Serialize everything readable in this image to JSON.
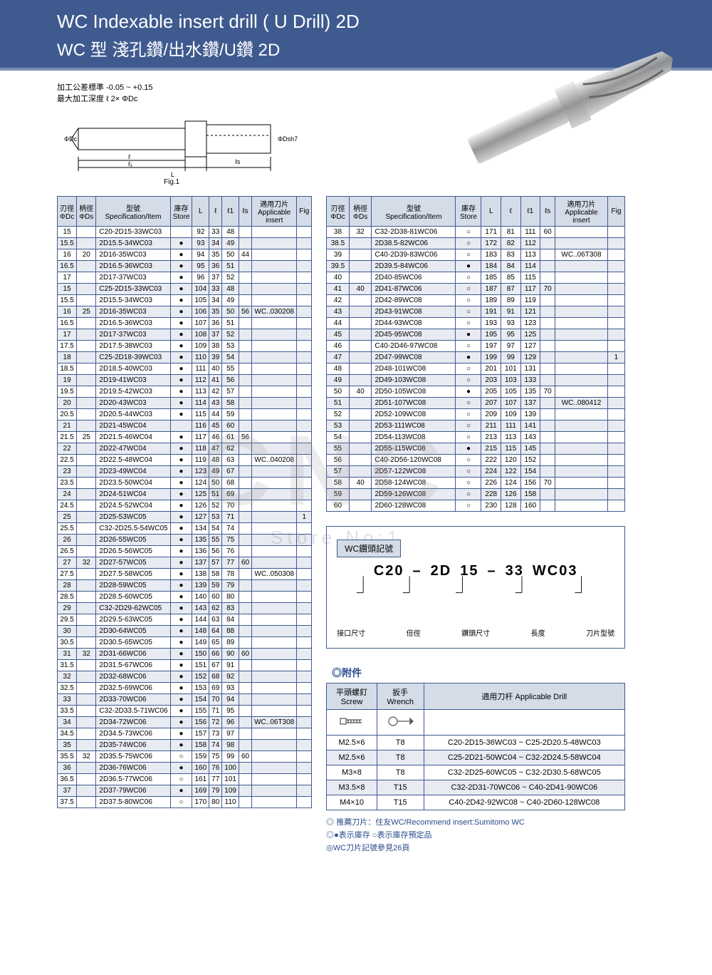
{
  "header": {
    "title_en": "WC Indexable insert drill   ( U Drill)   2D",
    "title_zh": "WC 型 淺孔鑽/出水鑽/U鑽  2D"
  },
  "tolerance": {
    "line1": "加工公差標準  -0.05 ~ +0.15",
    "line2": "最大加工深度 ℓ 2× ΦDc"
  },
  "fig_label": "Fig.1",
  "table_headers": {
    "dc": "刃徑\nΦDc",
    "ds": "柄徑\nΦDs",
    "spec": "型號\nSpecification/Item",
    "store": "庫存\nStore",
    "L": "L",
    "l": "ℓ",
    "l1": "ℓ1",
    "ls": "ℓs",
    "insert": "適用刀片\nApplicable\ninsert",
    "fig": "Fig"
  },
  "table1": {
    "rows": [
      {
        "dc": "15",
        "ds": "",
        "spec": "C20-2D15-33WC03",
        "store": "",
        "L": "92",
        "l": "33",
        "l1": "48",
        "ls": "",
        "ins": "",
        "fig": ""
      },
      {
        "dc": "15.5",
        "ds": "",
        "spec": "2D15.5-34WC03",
        "store": "●",
        "L": "93",
        "l": "34",
        "l1": "49",
        "ls": "",
        "ins": "",
        "fig": ""
      },
      {
        "dc": "16",
        "ds": "20",
        "spec": "2D16-35WC03",
        "store": "●",
        "L": "94",
        "l": "35",
        "l1": "50",
        "ls": "44",
        "ins": "",
        "fig": ""
      },
      {
        "dc": "16.5",
        "ds": "",
        "spec": "2D16.5-36WC03",
        "store": "●",
        "L": "95",
        "l": "36",
        "l1": "51",
        "ls": "",
        "ins": "",
        "fig": ""
      },
      {
        "dc": "17",
        "ds": "",
        "spec": "2D17-37WC03",
        "store": "●",
        "L": "96",
        "l": "37",
        "l1": "52",
        "ls": "",
        "ins": "",
        "fig": ""
      },
      {
        "dc": "15",
        "ds": "",
        "spec": "C25-2D15-33WC03",
        "store": "●",
        "L": "104",
        "l": "33",
        "l1": "48",
        "ls": "",
        "ins": "",
        "fig": ""
      },
      {
        "dc": "15.5",
        "ds": "",
        "spec": "2D15.5-34WC03",
        "store": "●",
        "L": "105",
        "l": "34",
        "l1": "49",
        "ls": "",
        "ins": "",
        "fig": ""
      },
      {
        "dc": "16",
        "ds": "25",
        "spec": "2D16-35WC03",
        "store": "●",
        "L": "106",
        "l": "35",
        "l1": "50",
        "ls": "56",
        "ins": "WC..030208",
        "fig": ""
      },
      {
        "dc": "16.5",
        "ds": "",
        "spec": "2D16.5-36WC03",
        "store": "●",
        "L": "107",
        "l": "36",
        "l1": "51",
        "ls": "",
        "ins": "",
        "fig": ""
      },
      {
        "dc": "17",
        "ds": "",
        "spec": "2D17-37WC03",
        "store": "●",
        "L": "108",
        "l": "37",
        "l1": "52",
        "ls": "",
        "ins": "",
        "fig": ""
      },
      {
        "dc": "17.5",
        "ds": "",
        "spec": "2D17.5-38WC03",
        "store": "●",
        "L": "109",
        "l": "38",
        "l1": "53",
        "ls": "",
        "ins": "",
        "fig": ""
      },
      {
        "dc": "18",
        "ds": "",
        "spec": "C25-2D18-39WC03",
        "store": "●",
        "L": "110",
        "l": "39",
        "l1": "54",
        "ls": "",
        "ins": "",
        "fig": ""
      },
      {
        "dc": "18.5",
        "ds": "",
        "spec": "2D18.5-40WC03",
        "store": "●",
        "L": "111",
        "l": "40",
        "l1": "55",
        "ls": "",
        "ins": "",
        "fig": ""
      },
      {
        "dc": "19",
        "ds": "",
        "spec": "2D19-41WC03",
        "store": "●",
        "L": "112",
        "l": "41",
        "l1": "56",
        "ls": "",
        "ins": "",
        "fig": ""
      },
      {
        "dc": "19.5",
        "ds": "",
        "spec": "2D19.5-42WC03",
        "store": "●",
        "L": "113",
        "l": "42",
        "l1": "57",
        "ls": "",
        "ins": "",
        "fig": ""
      },
      {
        "dc": "20",
        "ds": "",
        "spec": "2D20-43WC03",
        "store": "●",
        "L": "114",
        "l": "43",
        "l1": "58",
        "ls": "",
        "ins": "",
        "fig": ""
      },
      {
        "dc": "20.5",
        "ds": "",
        "spec": "2D20.5-44WC03",
        "store": "●",
        "L": "115",
        "l": "44",
        "l1": "59",
        "ls": "",
        "ins": "",
        "fig": ""
      },
      {
        "dc": "21",
        "ds": "",
        "spec": "2D21-45WC04",
        "store": "",
        "L": "116",
        "l": "45",
        "l1": "60",
        "ls": "",
        "ins": "",
        "fig": ""
      },
      {
        "dc": "21.5",
        "ds": "25",
        "spec": "2D21.5-46WC04",
        "store": "●",
        "L": "117",
        "l": "46",
        "l1": "61",
        "ls": "56",
        "ins": "",
        "fig": ""
      },
      {
        "dc": "22",
        "ds": "",
        "spec": "2D22-47WC04",
        "store": "●",
        "L": "118",
        "l": "47",
        "l1": "62",
        "ls": "",
        "ins": "",
        "fig": ""
      },
      {
        "dc": "22.5",
        "ds": "",
        "spec": "2D22.5-48WC04",
        "store": "●",
        "L": "119",
        "l": "48",
        "l1": "63",
        "ls": "",
        "ins": "WC..040208",
        "fig": ""
      },
      {
        "dc": "23",
        "ds": "",
        "spec": "2D23-49WC04",
        "store": "●",
        "L": "123",
        "l": "49",
        "l1": "67",
        "ls": "",
        "ins": "",
        "fig": ""
      },
      {
        "dc": "23.5",
        "ds": "",
        "spec": "2D23.5-50WC04",
        "store": "●",
        "L": "124",
        "l": "50",
        "l1": "68",
        "ls": "",
        "ins": "",
        "fig": ""
      },
      {
        "dc": "24",
        "ds": "",
        "spec": "2D24-51WC04",
        "store": "●",
        "L": "125",
        "l": "51",
        "l1": "69",
        "ls": "",
        "ins": "",
        "fig": ""
      },
      {
        "dc": "24.5",
        "ds": "",
        "spec": "2D24.5-52WC04",
        "store": "●",
        "L": "126",
        "l": "52",
        "l1": "70",
        "ls": "",
        "ins": "",
        "fig": ""
      },
      {
        "dc": "25",
        "ds": "",
        "spec": "2D25-53WC05",
        "store": "●",
        "L": "127",
        "l": "53",
        "l1": "71",
        "ls": "",
        "ins": "",
        "fig": "1"
      },
      {
        "dc": "25.5",
        "ds": "",
        "spec": "C32-2D25.5-54WC05",
        "store": "●",
        "L": "134",
        "l": "54",
        "l1": "74",
        "ls": "",
        "ins": "",
        "fig": ""
      },
      {
        "dc": "26",
        "ds": "",
        "spec": "2D26-55WC05",
        "store": "●",
        "L": "135",
        "l": "55",
        "l1": "75",
        "ls": "",
        "ins": "",
        "fig": ""
      },
      {
        "dc": "26.5",
        "ds": "",
        "spec": "2D26.5-56WC05",
        "store": "●",
        "L": "136",
        "l": "56",
        "l1": "76",
        "ls": "",
        "ins": "",
        "fig": ""
      },
      {
        "dc": "27",
        "ds": "32",
        "spec": "2D27-57WC05",
        "store": "●",
        "L": "137",
        "l": "57",
        "l1": "77",
        "ls": "60",
        "ins": "",
        "fig": ""
      },
      {
        "dc": "27.5",
        "ds": "",
        "spec": "2D27.5-58WC05",
        "store": "●",
        "L": "138",
        "l": "58",
        "l1": "78",
        "ls": "",
        "ins": "WC..050308",
        "fig": ""
      },
      {
        "dc": "28",
        "ds": "",
        "spec": "2D28-59WC05",
        "store": "●",
        "L": "139",
        "l": "59",
        "l1": "79",
        "ls": "",
        "ins": "",
        "fig": ""
      },
      {
        "dc": "28.5",
        "ds": "",
        "spec": "2D28.5-60WC05",
        "store": "●",
        "L": "140",
        "l": "60",
        "l1": "80",
        "ls": "",
        "ins": "",
        "fig": ""
      },
      {
        "dc": "29",
        "ds": "",
        "spec": "C32-2D29-62WC05",
        "store": "●",
        "L": "143",
        "l": "62",
        "l1": "83",
        "ls": "",
        "ins": "",
        "fig": ""
      },
      {
        "dc": "29.5",
        "ds": "",
        "spec": "2D29.5-63WC05",
        "store": "●",
        "L": "144",
        "l": "63",
        "l1": "84",
        "ls": "",
        "ins": "",
        "fig": ""
      },
      {
        "dc": "30",
        "ds": "",
        "spec": "2D30-64WC05",
        "store": "●",
        "L": "148",
        "l": "64",
        "l1": "88",
        "ls": "",
        "ins": "",
        "fig": ""
      },
      {
        "dc": "30.5",
        "ds": "",
        "spec": "2D30.5-65WC05",
        "store": "●",
        "L": "149",
        "l": "65",
        "l1": "89",
        "ls": "",
        "ins": "",
        "fig": ""
      },
      {
        "dc": "31",
        "ds": "32",
        "spec": "2D31-66WC06",
        "store": "●",
        "L": "150",
        "l": "66",
        "l1": "90",
        "ls": "60",
        "ins": "",
        "fig": ""
      },
      {
        "dc": "31.5",
        "ds": "",
        "spec": "2D31.5-67WC06",
        "store": "●",
        "L": "151",
        "l": "67",
        "l1": "91",
        "ls": "",
        "ins": "",
        "fig": ""
      },
      {
        "dc": "32",
        "ds": "",
        "spec": "2D32-68WC06",
        "store": "●",
        "L": "152",
        "l": "68",
        "l1": "92",
        "ls": "",
        "ins": "",
        "fig": ""
      },
      {
        "dc": "32.5",
        "ds": "",
        "spec": "2D32.5-69WC06",
        "store": "●",
        "L": "153",
        "l": "69",
        "l1": "93",
        "ls": "",
        "ins": "",
        "fig": ""
      },
      {
        "dc": "33",
        "ds": "",
        "spec": "2D33-70WC06",
        "store": "●",
        "L": "154",
        "l": "70",
        "l1": "94",
        "ls": "",
        "ins": "",
        "fig": ""
      },
      {
        "dc": "33.5",
        "ds": "",
        "spec": "C32-2D33.5-71WC06",
        "store": "●",
        "L": "155",
        "l": "71",
        "l1": "95",
        "ls": "",
        "ins": "",
        "fig": ""
      },
      {
        "dc": "34",
        "ds": "",
        "spec": "2D34-72WC06",
        "store": "●",
        "L": "156",
        "l": "72",
        "l1": "96",
        "ls": "",
        "ins": "WC..06T308",
        "fig": ""
      },
      {
        "dc": "34.5",
        "ds": "",
        "spec": "2D34.5-73WC06",
        "store": "●",
        "L": "157",
        "l": "73",
        "l1": "97",
        "ls": "",
        "ins": "",
        "fig": ""
      },
      {
        "dc": "35",
        "ds": "",
        "spec": "2D35-74WC06",
        "store": "●",
        "L": "158",
        "l": "74",
        "l1": "98",
        "ls": "",
        "ins": "",
        "fig": ""
      },
      {
        "dc": "35.5",
        "ds": "32",
        "spec": "2D35.5-75WC06",
        "store": "○",
        "L": "159",
        "l": "75",
        "l1": "99",
        "ls": "60",
        "ins": "",
        "fig": ""
      },
      {
        "dc": "36",
        "ds": "",
        "spec": "2D36-76WC06",
        "store": "●",
        "L": "160",
        "l": "76",
        "l1": "100",
        "ls": "",
        "ins": "",
        "fig": ""
      },
      {
        "dc": "36.5",
        "ds": "",
        "spec": "2D36.5-77WC06",
        "store": "○",
        "L": "161",
        "l": "77",
        "l1": "101",
        "ls": "",
        "ins": "",
        "fig": ""
      },
      {
        "dc": "37",
        "ds": "",
        "spec": "2D37-79WC06",
        "store": "●",
        "L": "169",
        "l": "79",
        "l1": "109",
        "ls": "",
        "ins": "",
        "fig": ""
      },
      {
        "dc": "37.5",
        "ds": "",
        "spec": "2D37.5-80WC06",
        "store": "○",
        "L": "170",
        "l": "80",
        "l1": "110",
        "ls": "",
        "ins": "",
        "fig": ""
      }
    ]
  },
  "table2": {
    "rows": [
      {
        "dc": "38",
        "ds": "32",
        "spec": "C32-2D38-81WC06",
        "store": "○",
        "L": "171",
        "l": "81",
        "l1": "111",
        "ls": "60",
        "ins": "",
        "fig": ""
      },
      {
        "dc": "38.5",
        "ds": "",
        "spec": "2D38.5-82WC06",
        "store": "○",
        "L": "172",
        "l": "82",
        "l1": "112",
        "ls": "",
        "ins": "",
        "fig": ""
      },
      {
        "dc": "39",
        "ds": "",
        "spec": "C40-2D39-83WC06",
        "store": "○",
        "L": "183",
        "l": "83",
        "l1": "113",
        "ls": "",
        "ins": "WC..06T308",
        "fig": ""
      },
      {
        "dc": "39.5",
        "ds": "",
        "spec": "2D39.5-84WC06",
        "store": "●",
        "L": "184",
        "l": "84",
        "l1": "114",
        "ls": "",
        "ins": "",
        "fig": ""
      },
      {
        "dc": "40",
        "ds": "",
        "spec": "2D40-85WC06",
        "store": "○",
        "L": "185",
        "l": "85",
        "l1": "115",
        "ls": "",
        "ins": "",
        "fig": ""
      },
      {
        "dc": "41",
        "ds": "40",
        "spec": "2D41-87WC06",
        "store": "○",
        "L": "187",
        "l": "87",
        "l1": "117",
        "ls": "70",
        "ins": "",
        "fig": ""
      },
      {
        "dc": "42",
        "ds": "",
        "spec": "2D42-89WC08",
        "store": "○",
        "L": "189",
        "l": "89",
        "l1": "119",
        "ls": "",
        "ins": "",
        "fig": ""
      },
      {
        "dc": "43",
        "ds": "",
        "spec": "2D43-91WC08",
        "store": "○",
        "L": "191",
        "l": "91",
        "l1": "121",
        "ls": "",
        "ins": "",
        "fig": ""
      },
      {
        "dc": "44",
        "ds": "",
        "spec": "2D44-93WC08",
        "store": "○",
        "L": "193",
        "l": "93",
        "l1": "123",
        "ls": "",
        "ins": "",
        "fig": ""
      },
      {
        "dc": "45",
        "ds": "",
        "spec": "2D45-95WC08",
        "store": "●",
        "L": "195",
        "l": "95",
        "l1": "125",
        "ls": "",
        "ins": "",
        "fig": ""
      },
      {
        "dc": "46",
        "ds": "",
        "spec": "C40-2D46-97WC08",
        "store": "○",
        "L": "197",
        "l": "97",
        "l1": "127",
        "ls": "",
        "ins": "",
        "fig": ""
      },
      {
        "dc": "47",
        "ds": "",
        "spec": "2D47-99WC08",
        "store": "●",
        "L": "199",
        "l": "99",
        "l1": "129",
        "ls": "",
        "ins": "",
        "fig": "1"
      },
      {
        "dc": "48",
        "ds": "",
        "spec": "2D48-101WC08",
        "store": "○",
        "L": "201",
        "l": "101",
        "l1": "131",
        "ls": "",
        "ins": "",
        "fig": ""
      },
      {
        "dc": "49",
        "ds": "",
        "spec": "2D49-103WC08",
        "store": "○",
        "L": "203",
        "l": "103",
        "l1": "133",
        "ls": "",
        "ins": "",
        "fig": ""
      },
      {
        "dc": "50",
        "ds": "40",
        "spec": "2D50-105WC08",
        "store": "●",
        "L": "205",
        "l": "105",
        "l1": "135",
        "ls": "70",
        "ins": "",
        "fig": ""
      },
      {
        "dc": "51",
        "ds": "",
        "spec": "2D51-107WC08",
        "store": "○",
        "L": "207",
        "l": "107",
        "l1": "137",
        "ls": "",
        "ins": "WC..080412",
        "fig": ""
      },
      {
        "dc": "52",
        "ds": "",
        "spec": "2D52-109WC08",
        "store": "○",
        "L": "209",
        "l": "109",
        "l1": "139",
        "ls": "",
        "ins": "",
        "fig": ""
      },
      {
        "dc": "53",
        "ds": "",
        "spec": "2D53-111WC08",
        "store": "○",
        "L": "211",
        "l": "111",
        "l1": "141",
        "ls": "",
        "ins": "",
        "fig": ""
      },
      {
        "dc": "54",
        "ds": "",
        "spec": "2D54-113WC08",
        "store": "○",
        "L": "213",
        "l": "113",
        "l1": "143",
        "ls": "",
        "ins": "",
        "fig": ""
      },
      {
        "dc": "55",
        "ds": "",
        "spec": "2D55-115WC08",
        "store": "●",
        "L": "215",
        "l": "115",
        "l1": "145",
        "ls": "",
        "ins": "",
        "fig": ""
      },
      {
        "dc": "56",
        "ds": "",
        "spec": "C40-2D56-120WC08",
        "store": "○",
        "L": "222",
        "l": "120",
        "l1": "152",
        "ls": "",
        "ins": "",
        "fig": ""
      },
      {
        "dc": "57",
        "ds": "",
        "spec": "2D57-122WC08",
        "store": "○",
        "L": "224",
        "l": "122",
        "l1": "154",
        "ls": "",
        "ins": "",
        "fig": ""
      },
      {
        "dc": "58",
        "ds": "40",
        "spec": "2D58-124WC08",
        "store": "○",
        "L": "226",
        "l": "124",
        "l1": "156",
        "ls": "70",
        "ins": "",
        "fig": ""
      },
      {
        "dc": "59",
        "ds": "",
        "spec": "2D59-126WC08",
        "store": "○",
        "L": "228",
        "l": "126",
        "l1": "158",
        "ls": "",
        "ins": "",
        "fig": ""
      },
      {
        "dc": "60",
        "ds": "",
        "spec": "2D60-128WC08",
        "store": "○",
        "L": "230",
        "l": "128",
        "l1": "160",
        "ls": "",
        "ins": "",
        "fig": ""
      }
    ]
  },
  "code_box": {
    "title": "WC鑽頭記號",
    "parts": [
      "C20",
      "–",
      "2D",
      "15",
      "–",
      "33",
      "WC03"
    ],
    "labels": [
      "接口尺寸",
      "倍徑",
      "鑽頭尺寸",
      "長度",
      "刀片型號"
    ]
  },
  "accessories": {
    "title": "◎附件",
    "headers": [
      "平頭螺釘\nScrew",
      "扳手\nWrench",
      "適用刀杆 Applicable Drill"
    ],
    "rows": [
      {
        "screw": "M2.5×6",
        "wrench": "T8",
        "drill": "C20-2D15-36WC03 ~ C25-2D20.5-48WC03"
      },
      {
        "screw": "M2.5×6",
        "wrench": "T8",
        "drill": "C25-2D21-50WC04 ~ C32-2D24.5-58WC04"
      },
      {
        "screw": "M3×8",
        "wrench": "T8",
        "drill": "C32-2D25-60WC05 ~ C32-2D30.5-68WC05"
      },
      {
        "screw": "M3.5×8",
        "wrench": "T15",
        "drill": "C32-2D31-70WC06 ~ C40-2D41-90WC06"
      },
      {
        "screw": "M4×10",
        "wrench": "T15",
        "drill": "C40-2D42-92WC08 ~ C40-2D60-128WC08"
      }
    ]
  },
  "footnotes": [
    "◎ 推薦刀片：住友WC/Recommend insert:Sumitomo WC",
    "◎●表示庫存   ○表示庫存預定品",
    "◎WC刀片記號參見26頁"
  ],
  "watermark": {
    "main": "CNC",
    "sub": "Store No:1"
  },
  "colors": {
    "header_bg": "#3f5a8f",
    "th_bg": "#d4dce8",
    "alt_bg": "#e8ebf2",
    "border": "#3f5a8f",
    "link": "#2a4a8a"
  }
}
